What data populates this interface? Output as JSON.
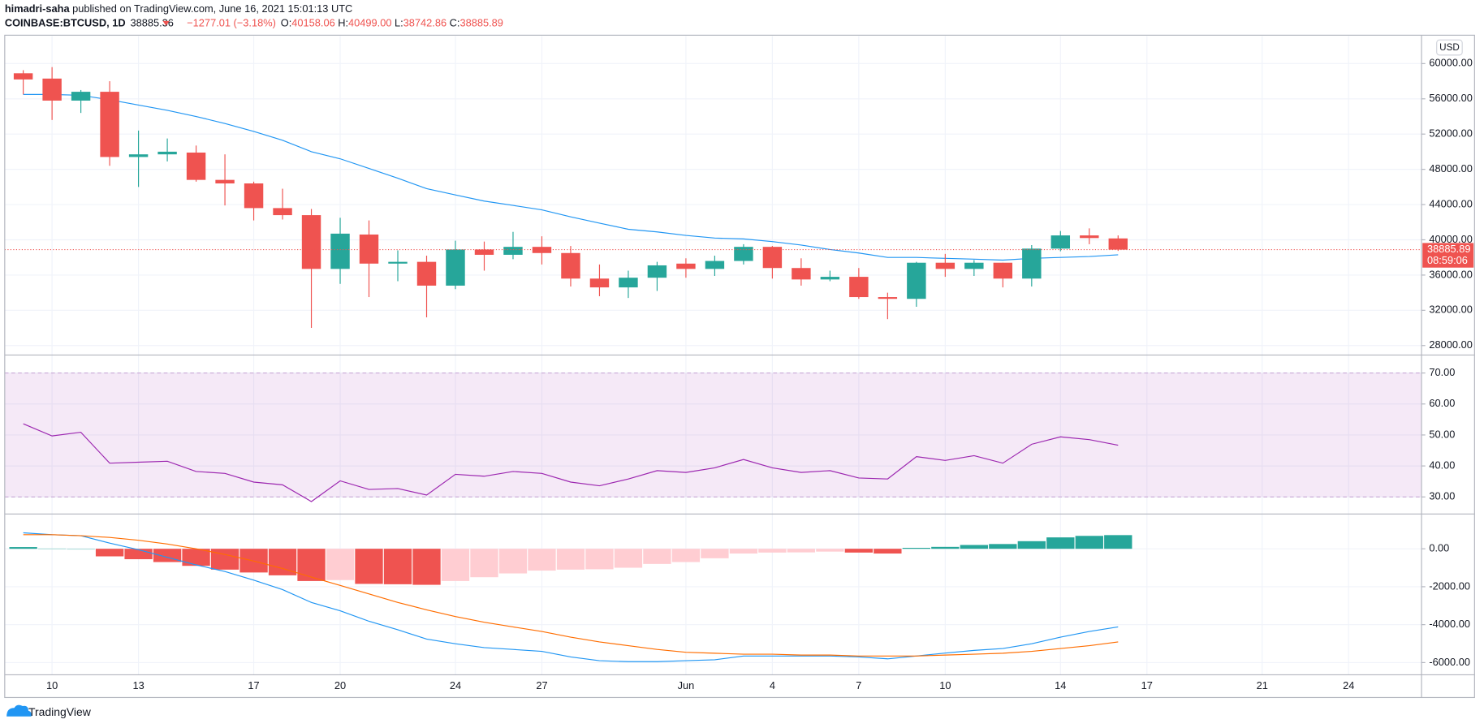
{
  "header": {
    "author": "himadri-saha",
    "published": "published on TradingView.com, June 16, 2021 15:01:13 UTC",
    "symbol": "COINBASE:BTCUSD, 1D",
    "price": "38885.36",
    "change": "−1277.01 (−3.18%)",
    "ohlc": [
      {
        "label": "O:",
        "value": "40158.06"
      },
      {
        "label": "H:",
        "value": "40499.00"
      },
      {
        "label": "L:",
        "value": "38742.86"
      },
      {
        "label": "C:",
        "value": "38885.89"
      }
    ]
  },
  "footer": {
    "brand": "TradingView"
  },
  "chart_data": {
    "type": "candlestick",
    "x": [
      "2021-05-09",
      "2021-05-10",
      "2021-05-11",
      "2021-05-12",
      "2021-05-13",
      "2021-05-14",
      "2021-05-15",
      "2021-05-16",
      "2021-05-17",
      "2021-05-18",
      "2021-05-19",
      "2021-05-20",
      "2021-05-21",
      "2021-05-22",
      "2021-05-23",
      "2021-05-24",
      "2021-05-25",
      "2021-05-26",
      "2021-05-27",
      "2021-05-28",
      "2021-05-29",
      "2021-05-30",
      "2021-05-31",
      "2021-06-01",
      "2021-06-02",
      "2021-06-03",
      "2021-06-04",
      "2021-06-05",
      "2021-06-06",
      "2021-06-07",
      "2021-06-08",
      "2021-06-09",
      "2021-06-10",
      "2021-06-11",
      "2021-06-12",
      "2021-06-13",
      "2021-06-14",
      "2021-06-15",
      "2021-06-16"
    ],
    "open": [
      58900,
      58300,
      55800,
      56800,
      49400,
      49700,
      49900,
      46800,
      46400,
      43600,
      42800,
      36700,
      40600,
      37300,
      37500,
      34800,
      38900,
      38300,
      39200,
      38500,
      35600,
      34600,
      35700,
      37300,
      36700,
      37600,
      39200,
      36800,
      35500,
      35800,
      33500,
      33300,
      37400,
      36700,
      37400,
      35600,
      39000,
      40500,
      40158.06
    ],
    "high": [
      59250,
      59600,
      57000,
      58000,
      52400,
      51500,
      50700,
      49700,
      46600,
      45800,
      43500,
      42500,
      42200,
      38800,
      38200,
      39900,
      39800,
      40900,
      40400,
      39300,
      37200,
      36500,
      37500,
      37900,
      38200,
      39500,
      39300,
      37900,
      36500,
      36800,
      34000,
      37500,
      38400,
      37700,
      37400,
      39400,
      41000,
      41300,
      40499
    ],
    "low": [
      56500,
      53600,
      54400,
      48400,
      46000,
      48900,
      46600,
      43900,
      42200,
      42300,
      30000,
      35000,
      33500,
      35300,
      31200,
      34400,
      36500,
      37800,
      37200,
      34700,
      33600,
      33400,
      34200,
      35700,
      35900,
      37200,
      35600,
      34800,
      35300,
      33300,
      31000,
      32400,
      35800,
      35900,
      34600,
      34700,
      38700,
      39500,
      38742.86
    ],
    "close": [
      58200,
      55800,
      56800,
      49400,
      49700,
      50000,
      46800,
      46400,
      43600,
      42800,
      36700,
      40700,
      37300,
      37500,
      34800,
      38900,
      38300,
      39200,
      38500,
      35600,
      34600,
      35700,
      37100,
      36700,
      37600,
      39200,
      36800,
      35500,
      35800,
      33500,
      33300,
      37400,
      36700,
      37400,
      35600,
      39000,
      40500,
      40200,
      38885.89
    ],
    "colors": {
      "up": "#26a69a",
      "down": "#ef5350"
    },
    "overlay": {
      "color": "#2196f3",
      "values": [
        56500,
        56500,
        56400,
        55900,
        55300,
        54700,
        54000,
        53200,
        52300,
        51300,
        50000,
        49200,
        48100,
        47000,
        45800,
        45100,
        44400,
        43900,
        43400,
        42600,
        41900,
        41200,
        40900,
        40500,
        40200,
        40100,
        39800,
        39400,
        38900,
        38500,
        38000,
        38000,
        37900,
        37800,
        37700,
        37900,
        38000,
        38100,
        38300
      ]
    },
    "last_price": 38885.89,
    "countdown": "08:59:06",
    "unit": "USD",
    "xlim": [
      "2021-05-08T08:35:00Z",
      "2021-06-26T12:45:00Z"
    ],
    "xticks": [
      {
        "value": "2021-05-10",
        "label": "10"
      },
      {
        "value": "2021-05-13",
        "label": "13"
      },
      {
        "value": "2021-05-17",
        "label": "17"
      },
      {
        "value": "2021-05-20",
        "label": "20"
      },
      {
        "value": "2021-05-24",
        "label": "24"
      },
      {
        "value": "2021-05-27",
        "label": "27"
      },
      {
        "value": "2021-06-01",
        "label": "Jun"
      },
      {
        "value": "2021-06-04",
        "label": "4"
      },
      {
        "value": "2021-06-07",
        "label": "7"
      },
      {
        "value": "2021-06-10",
        "label": "10"
      },
      {
        "value": "2021-06-14",
        "label": "14"
      },
      {
        "value": "2021-06-17",
        "label": "17"
      },
      {
        "value": "2021-06-21",
        "label": "21"
      },
      {
        "value": "2021-06-24",
        "label": "24"
      }
    ],
    "ylim": [
      26926,
      63114
    ],
    "yticks": [
      {
        "value": 60000,
        "label": "60000.00"
      },
      {
        "value": 56000,
        "label": "56000.00"
      },
      {
        "value": 52000,
        "label": "52000.00"
      },
      {
        "value": 48000,
        "label": "48000.00"
      },
      {
        "value": 44000,
        "label": "44000.00"
      },
      {
        "value": 40000,
        "label": "40000.00"
      },
      {
        "value": 36000,
        "label": "36000.00"
      },
      {
        "value": 32000,
        "label": "32000.00"
      },
      {
        "value": 28000,
        "label": "28000.00"
      }
    ],
    "grid": true,
    "indicators": [
      {
        "type": "line",
        "color": "#9c27b0",
        "band": [
          30,
          70
        ],
        "values": [
          53.6,
          49.7,
          50.9,
          40.9,
          41.2,
          41.5,
          38.2,
          37.6,
          34.8,
          33.9,
          28.5,
          35.2,
          32.4,
          32.7,
          30.6,
          37.3,
          36.7,
          38.2,
          37.6,
          34.8,
          33.6,
          35.8,
          38.5,
          37.9,
          39.4,
          42.1,
          39.4,
          37.9,
          38.5,
          36.1,
          35.8,
          43.0,
          41.8,
          43.3,
          40.9,
          47.0,
          49.4,
          48.5,
          46.7
        ],
        "ylim": [
          24.5,
          75.5
        ],
        "yticks": [
          {
            "value": 70,
            "label": "70.00"
          },
          {
            "value": 60,
            "label": "60.00"
          },
          {
            "value": 50,
            "label": "50.00"
          },
          {
            "value": 40,
            "label": "40.00"
          },
          {
            "value": 30,
            "label": "30.00"
          }
        ]
      },
      {
        "type": "macd",
        "histogram": [
          90,
          20,
          10,
          -400,
          -550,
          -700,
          -900,
          -1100,
          -1250,
          -1400,
          -1700,
          -1650,
          -1850,
          -1870,
          -1900,
          -1700,
          -1500,
          -1300,
          -1150,
          -1100,
          -1080,
          -1000,
          -800,
          -700,
          -500,
          -250,
          -200,
          -190,
          -150,
          -200,
          -250,
          50,
          100,
          200,
          250,
          400,
          600,
          680,
          720
        ],
        "histogram_colors": {
          "rise_up": "#26a69a",
          "fall_up": "#b2dfdb",
          "fall_down": "#ef5350",
          "rise_down": "#ffcdd2"
        },
        "series": [
          {
            "color": "#2196f3",
            "values": [
              840,
              740,
              690,
              300,
              -50,
              -450,
              -850,
              -1200,
              -1650,
              -2150,
              -2830,
              -3270,
              -3820,
              -4270,
              -4760,
              -5010,
              -5210,
              -5310,
              -5410,
              -5700,
              -5900,
              -5950,
              -5950,
              -5900,
              -5850,
              -5650,
              -5650,
              -5650,
              -5650,
              -5700,
              -5800,
              -5650,
              -5500,
              -5360,
              -5260,
              -5010,
              -4660,
              -4360,
              -4120
            ]
          },
          {
            "color": "#ff6d00",
            "values": [
              740,
              740,
              690,
              600,
              450,
              250,
              0,
              -300,
              -650,
              -1040,
              -1490,
              -1930,
              -2380,
              -2830,
              -3220,
              -3570,
              -3870,
              -4120,
              -4360,
              -4660,
              -4910,
              -5110,
              -5310,
              -5460,
              -5510,
              -5560,
              -5560,
              -5600,
              -5600,
              -5650,
              -5650,
              -5650,
              -5600,
              -5560,
              -5510,
              -5410,
              -5260,
              -5110,
              -4910
            ]
          }
        ],
        "ylim": [
          -6645,
          1785
        ],
        "yticks": [
          {
            "value": 0,
            "label": "0.00"
          },
          {
            "value": -2000,
            "label": "-2000.00"
          },
          {
            "value": -4000,
            "label": "-4000.00"
          },
          {
            "value": -6000,
            "label": "-6000.00"
          }
        ]
      }
    ]
  }
}
